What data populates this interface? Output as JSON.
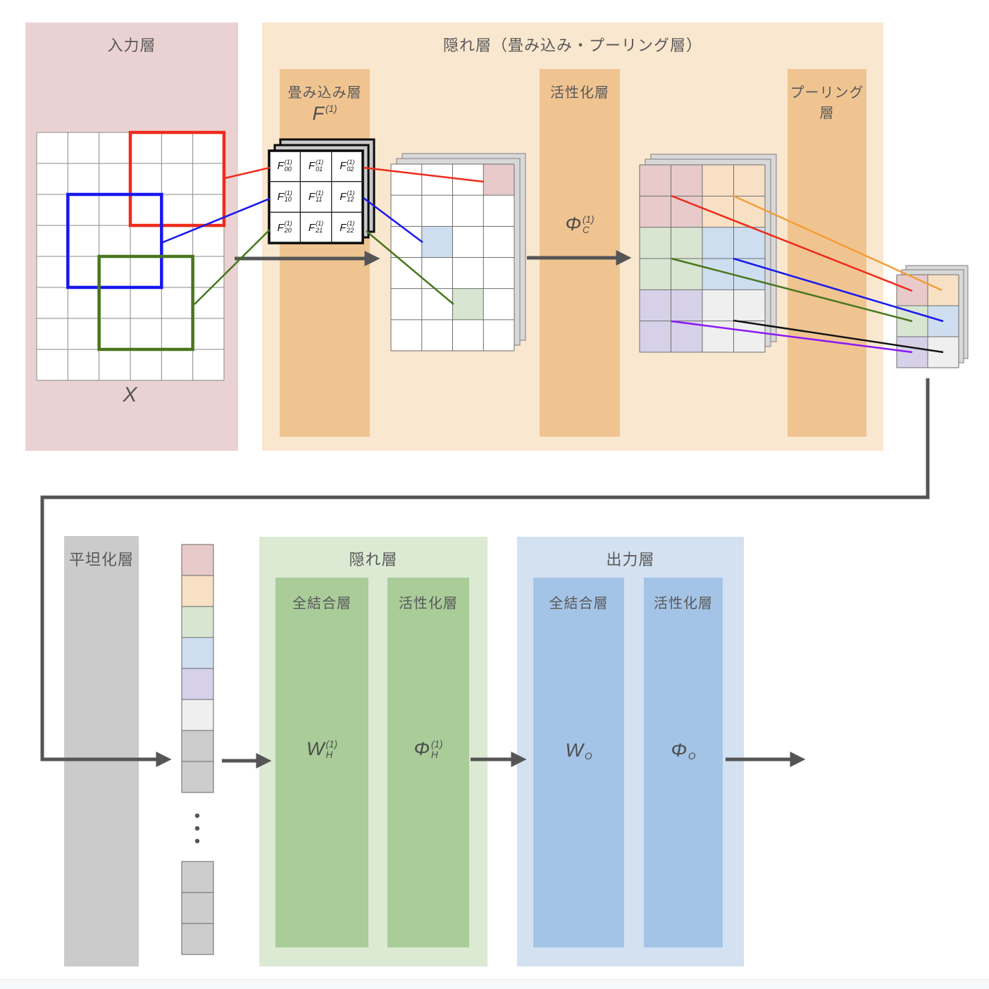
{
  "colors": {
    "input_bg": "#EBD2D2",
    "hidden_conv_bg": "#FAE7CF",
    "orange_col_bg": "#F0C491",
    "flatten_bg": "#CBCBCB",
    "hidden_fc_bg": "#DCEAD4",
    "hidden_col_bg": "#A9CC99",
    "output_bg": "#D3E1F1",
    "output_col_bg": "#A3C4E6",
    "bottom_strip_bg": "#F7F8F9",
    "cell_pink": "#E8CACA",
    "cell_orange": "#F8E0C4",
    "cell_green": "#D8E5D1",
    "cell_blue": "#CEDEF0",
    "cell_purple": "#D6D1E9",
    "cell_lightgray": "#EFEFEF",
    "cell_gray": "#CDCDCD",
    "window_red": "#EE2B1C",
    "window_blue": "#1718EE",
    "window_green": "#48761D",
    "line_orange": "#F49D37",
    "line_purple": "#8C18F5",
    "line_black": "#141414",
    "arrow": "#555555",
    "text": "#595959"
  },
  "top": {
    "input_layer": {
      "title": "入力層",
      "matrix_label": "X",
      "grid": {
        "cols": 6,
        "rows": 8
      },
      "windows": [
        {
          "name": "red-window",
          "color_key": "window_red",
          "col": 3,
          "row": 0,
          "size": 3
        },
        {
          "name": "blue-window",
          "color_key": "window_blue",
          "col": 1,
          "row": 2,
          "size": 3
        },
        {
          "name": "green-window",
          "color_key": "window_green",
          "col": 2,
          "row": 4,
          "size": 3
        }
      ]
    },
    "hidden_layer": {
      "title": "隠れ層（畳み込み・プーリング層）",
      "conv_layer": {
        "label": "畳み込み層",
        "filter_math": {
          "base": "F",
          "sub": "",
          "sup": "(1)"
        },
        "filter_cells": [
          {
            "base": "F",
            "sub": "00",
            "sup": "(1)"
          },
          {
            "base": "F",
            "sub": "01",
            "sup": "(1)"
          },
          {
            "base": "F",
            "sub": "02",
            "sup": "(1)"
          },
          {
            "base": "F",
            "sub": "10",
            "sup": "(1)"
          },
          {
            "base": "F",
            "sub": "11",
            "sup": "(1)"
          },
          {
            "base": "F",
            "sub": "12",
            "sup": "(1)"
          },
          {
            "base": "F",
            "sub": "20",
            "sup": "(1)"
          },
          {
            "base": "F",
            "sub": "21",
            "sup": "(1)"
          },
          {
            "base": "F",
            "sub": "22",
            "sup": "(1)"
          }
        ]
      },
      "activation_layer": {
        "label": "活性化層",
        "math": {
          "base": "Φ",
          "sub": "C",
          "sup": "(1)"
        }
      },
      "pooling_layer": {
        "label": "プーリング層"
      }
    },
    "feature_map": {
      "cols": 4,
      "rows": 6,
      "highlights": [
        {
          "row": 0,
          "col": 3,
          "color_key": "cell_pink"
        },
        {
          "row": 2,
          "col": 1,
          "color_key": "cell_blue"
        },
        {
          "row": 4,
          "col": 2,
          "color_key": "cell_green"
        }
      ]
    },
    "activation_map": {
      "cols": 4,
      "rows": 6,
      "blocks": [
        [
          "cell_pink",
          "cell_orange"
        ],
        [
          "cell_green",
          "cell_blue"
        ],
        [
          "cell_purple",
          "cell_lightgray"
        ]
      ]
    },
    "pooled_map": {
      "cols": 2,
      "rows": 3,
      "cells": [
        [
          "cell_pink",
          "cell_orange"
        ],
        [
          "cell_green",
          "cell_blue"
        ],
        [
          "cell_purple",
          "cell_lightgray"
        ]
      ]
    }
  },
  "bottom": {
    "flatten_layer": {
      "label": "平坦化層"
    },
    "vector": {
      "cells": [
        "cell_pink",
        "cell_orange",
        "cell_green",
        "cell_blue",
        "cell_purple",
        "cell_lightgray",
        "cell_gray",
        "cell_gray"
      ],
      "tail_cells": [
        "cell_gray",
        "cell_gray",
        "cell_gray"
      ],
      "ellipsis_dots": 3
    },
    "hidden_layer": {
      "title": "隠れ層",
      "fc_label": "全結合層",
      "act_label": "活性化層",
      "fc_math": {
        "base": "W",
        "sub": "H",
        "sup": "(1)"
      },
      "act_math": {
        "base": "Φ",
        "sub": "H",
        "sup": "(1)"
      }
    },
    "output_layer": {
      "title": "出力層",
      "fc_label": "全結合層",
      "act_label": "活性化層",
      "fc_math": {
        "base": "W",
        "sub": "O",
        "sup": ""
      },
      "act_math": {
        "base": "Φ",
        "sub": "O",
        "sup": ""
      }
    }
  }
}
